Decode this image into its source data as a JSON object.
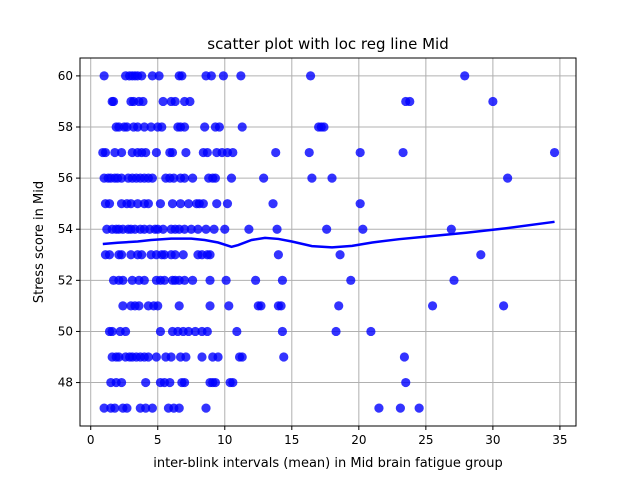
{
  "chart_data": {
    "type": "scatter",
    "title": "scatter plot with loc reg line Mid",
    "xlabel": "inter-blink intervals (mean) in Mid brain fatigue group",
    "ylabel": "Stress score in Mid",
    "xlim": [
      -0.8,
      36.2
    ],
    "ylim": [
      46.3,
      60.7
    ],
    "x_ticks": [
      0,
      5,
      10,
      15,
      20,
      25,
      30,
      35
    ],
    "y_ticks": [
      48,
      50,
      52,
      54,
      56,
      58,
      60
    ],
    "grid": true,
    "point_color": "#0000ff",
    "line_color": "#0000ff",
    "points": [
      [
        1.0,
        60
      ],
      [
        2.6,
        60
      ],
      [
        2.9,
        60
      ],
      [
        3.1,
        60
      ],
      [
        3.3,
        60
      ],
      [
        3.5,
        60
      ],
      [
        3.8,
        60
      ],
      [
        4.6,
        60
      ],
      [
        5.1,
        60
      ],
      [
        6.6,
        60
      ],
      [
        6.8,
        60
      ],
      [
        8.6,
        60
      ],
      [
        9.0,
        60
      ],
      [
        9.9,
        60
      ],
      [
        11.2,
        60
      ],
      [
        16.4,
        60
      ],
      [
        27.9,
        60
      ],
      [
        1.6,
        59
      ],
      [
        1.7,
        59
      ],
      [
        3.0,
        59
      ],
      [
        3.2,
        59
      ],
      [
        3.6,
        59
      ],
      [
        3.9,
        59
      ],
      [
        5.4,
        59
      ],
      [
        6.0,
        59
      ],
      [
        6.3,
        59
      ],
      [
        7.0,
        59
      ],
      [
        7.4,
        59
      ],
      [
        23.5,
        59
      ],
      [
        23.8,
        59
      ],
      [
        30.0,
        59
      ],
      [
        1.9,
        58
      ],
      [
        2.1,
        58
      ],
      [
        2.5,
        58
      ],
      [
        2.7,
        58
      ],
      [
        3.2,
        58
      ],
      [
        3.5,
        58
      ],
      [
        4.0,
        58
      ],
      [
        4.5,
        58
      ],
      [
        5.0,
        58
      ],
      [
        5.3,
        58
      ],
      [
        6.5,
        58
      ],
      [
        6.7,
        58
      ],
      [
        7.0,
        58
      ],
      [
        8.5,
        58
      ],
      [
        9.3,
        58
      ],
      [
        9.6,
        58
      ],
      [
        11.3,
        58
      ],
      [
        17.0,
        58
      ],
      [
        17.2,
        58
      ],
      [
        17.4,
        58
      ],
      [
        0.9,
        57
      ],
      [
        1.1,
        57
      ],
      [
        1.8,
        57
      ],
      [
        2.3,
        57
      ],
      [
        3.1,
        57
      ],
      [
        3.5,
        57
      ],
      [
        3.8,
        57
      ],
      [
        4.1,
        57
      ],
      [
        4.9,
        57
      ],
      [
        5.9,
        57
      ],
      [
        6.1,
        57
      ],
      [
        7.1,
        57
      ],
      [
        8.4,
        57
      ],
      [
        8.7,
        57
      ],
      [
        9.4,
        57
      ],
      [
        9.8,
        57
      ],
      [
        10.2,
        57
      ],
      [
        10.6,
        57
      ],
      [
        13.8,
        57
      ],
      [
        16.3,
        57
      ],
      [
        20.1,
        57
      ],
      [
        23.3,
        57
      ],
      [
        34.6,
        57
      ],
      [
        1.0,
        56
      ],
      [
        1.3,
        56
      ],
      [
        1.5,
        56
      ],
      [
        1.8,
        56
      ],
      [
        2.0,
        56
      ],
      [
        2.3,
        56
      ],
      [
        2.8,
        56
      ],
      [
        3.1,
        56
      ],
      [
        3.4,
        56
      ],
      [
        3.7,
        56
      ],
      [
        4.0,
        56
      ],
      [
        4.3,
        56
      ],
      [
        4.6,
        56
      ],
      [
        5.6,
        56
      ],
      [
        5.9,
        56
      ],
      [
        6.2,
        56
      ],
      [
        6.7,
        56
      ],
      [
        7.0,
        56
      ],
      [
        7.6,
        56
      ],
      [
        8.8,
        56
      ],
      [
        9.1,
        56
      ],
      [
        9.3,
        56
      ],
      [
        10.5,
        56
      ],
      [
        12.9,
        56
      ],
      [
        16.5,
        56
      ],
      [
        18.0,
        56
      ],
      [
        31.1,
        56
      ],
      [
        1.1,
        55
      ],
      [
        1.4,
        55
      ],
      [
        2.3,
        55
      ],
      [
        2.7,
        55
      ],
      [
        3.0,
        55
      ],
      [
        3.5,
        55
      ],
      [
        4.0,
        55
      ],
      [
        4.3,
        55
      ],
      [
        5.2,
        55
      ],
      [
        6.1,
        55
      ],
      [
        6.7,
        55
      ],
      [
        7.3,
        55
      ],
      [
        7.9,
        55
      ],
      [
        8.1,
        55
      ],
      [
        8.4,
        55
      ],
      [
        9.4,
        55
      ],
      [
        10.2,
        55
      ],
      [
        13.6,
        55
      ],
      [
        20.1,
        55
      ],
      [
        1.2,
        54
      ],
      [
        1.6,
        54
      ],
      [
        1.9,
        54
      ],
      [
        2.1,
        54
      ],
      [
        2.4,
        54
      ],
      [
        2.8,
        54
      ],
      [
        3.0,
        54
      ],
      [
        3.3,
        54
      ],
      [
        3.7,
        54
      ],
      [
        4.0,
        54
      ],
      [
        4.4,
        54
      ],
      [
        4.8,
        54
      ],
      [
        5.0,
        54
      ],
      [
        5.4,
        54
      ],
      [
        6.0,
        54
      ],
      [
        6.3,
        54
      ],
      [
        6.6,
        54
      ],
      [
        7.0,
        54
      ],
      [
        7.5,
        54
      ],
      [
        8.0,
        54
      ],
      [
        8.6,
        54
      ],
      [
        9.2,
        54
      ],
      [
        10.0,
        54
      ],
      [
        11.8,
        54
      ],
      [
        13.9,
        54
      ],
      [
        17.6,
        54
      ],
      [
        20.3,
        54
      ],
      [
        26.9,
        54
      ],
      [
        1.1,
        53
      ],
      [
        1.4,
        53
      ],
      [
        2.1,
        53
      ],
      [
        2.3,
        53
      ],
      [
        3.0,
        53
      ],
      [
        3.5,
        53
      ],
      [
        3.8,
        53
      ],
      [
        4.5,
        53
      ],
      [
        4.9,
        53
      ],
      [
        5.3,
        53
      ],
      [
        5.5,
        53
      ],
      [
        6.0,
        53
      ],
      [
        6.3,
        53
      ],
      [
        6.9,
        53
      ],
      [
        8.0,
        53
      ],
      [
        8.3,
        53
      ],
      [
        8.7,
        53
      ],
      [
        8.9,
        53
      ],
      [
        14.0,
        53
      ],
      [
        18.6,
        53
      ],
      [
        29.1,
        53
      ],
      [
        1.7,
        52
      ],
      [
        2.1,
        52
      ],
      [
        2.4,
        52
      ],
      [
        3.1,
        52
      ],
      [
        3.6,
        52
      ],
      [
        4.0,
        52
      ],
      [
        4.9,
        52
      ],
      [
        5.2,
        52
      ],
      [
        5.5,
        52
      ],
      [
        6.1,
        52
      ],
      [
        6.3,
        52
      ],
      [
        6.6,
        52
      ],
      [
        7.0,
        52
      ],
      [
        7.6,
        52
      ],
      [
        8.9,
        52
      ],
      [
        10.1,
        52
      ],
      [
        12.3,
        52
      ],
      [
        14.3,
        52
      ],
      [
        19.4,
        52
      ],
      [
        27.1,
        52
      ],
      [
        2.4,
        51
      ],
      [
        3.0,
        51
      ],
      [
        3.3,
        51
      ],
      [
        3.6,
        51
      ],
      [
        4.3,
        51
      ],
      [
        4.7,
        51
      ],
      [
        5.0,
        51
      ],
      [
        6.6,
        51
      ],
      [
        8.9,
        51
      ],
      [
        10.3,
        51
      ],
      [
        12.5,
        51
      ],
      [
        12.7,
        51
      ],
      [
        14.0,
        51
      ],
      [
        14.2,
        51
      ],
      [
        18.5,
        51
      ],
      [
        25.5,
        51
      ],
      [
        30.8,
        51
      ],
      [
        1.4,
        50
      ],
      [
        1.6,
        50
      ],
      [
        2.2,
        50
      ],
      [
        2.6,
        50
      ],
      [
        5.2,
        50
      ],
      [
        6.1,
        50
      ],
      [
        6.5,
        50
      ],
      [
        6.9,
        50
      ],
      [
        7.3,
        50
      ],
      [
        7.8,
        50
      ],
      [
        8.3,
        50
      ],
      [
        8.7,
        50
      ],
      [
        10.9,
        50
      ],
      [
        14.3,
        50
      ],
      [
        18.3,
        50
      ],
      [
        20.9,
        50
      ],
      [
        1.6,
        49
      ],
      [
        1.9,
        49
      ],
      [
        2.1,
        49
      ],
      [
        2.6,
        49
      ],
      [
        2.9,
        49
      ],
      [
        3.1,
        49
      ],
      [
        3.4,
        49
      ],
      [
        3.7,
        49
      ],
      [
        4.0,
        49
      ],
      [
        4.3,
        49
      ],
      [
        4.9,
        49
      ],
      [
        5.6,
        49
      ],
      [
        6.0,
        49
      ],
      [
        6.7,
        49
      ],
      [
        7.1,
        49
      ],
      [
        8.3,
        49
      ],
      [
        9.1,
        49
      ],
      [
        9.5,
        49
      ],
      [
        11.1,
        49
      ],
      [
        11.3,
        49
      ],
      [
        14.4,
        49
      ],
      [
        23.4,
        49
      ],
      [
        1.5,
        48
      ],
      [
        1.9,
        48
      ],
      [
        2.3,
        48
      ],
      [
        4.1,
        48
      ],
      [
        5.2,
        48
      ],
      [
        5.5,
        48
      ],
      [
        5.9,
        48
      ],
      [
        6.8,
        48
      ],
      [
        7.0,
        48
      ],
      [
        8.9,
        48
      ],
      [
        9.1,
        48
      ],
      [
        9.3,
        48
      ],
      [
        10.4,
        48
      ],
      [
        10.6,
        48
      ],
      [
        23.5,
        48
      ],
      [
        1.0,
        47
      ],
      [
        1.5,
        47
      ],
      [
        1.8,
        47
      ],
      [
        2.4,
        47
      ],
      [
        2.7,
        47
      ],
      [
        3.7,
        47
      ],
      [
        4.1,
        47
      ],
      [
        4.6,
        47
      ],
      [
        5.8,
        47
      ],
      [
        6.2,
        47
      ],
      [
        6.6,
        47
      ],
      [
        8.6,
        47
      ],
      [
        21.5,
        47
      ],
      [
        23.1,
        47
      ],
      [
        24.5,
        47
      ]
    ],
    "loess_line": [
      [
        0.9,
        53.42
      ],
      [
        2.0,
        53.47
      ],
      [
        3.5,
        53.52
      ],
      [
        4.5,
        53.58
      ],
      [
        6.0,
        53.63
      ],
      [
        7.5,
        53.63
      ],
      [
        8.5,
        53.58
      ],
      [
        9.5,
        53.48
      ],
      [
        10.5,
        53.31
      ],
      [
        11.0,
        53.38
      ],
      [
        12.0,
        53.58
      ],
      [
        13.0,
        53.66
      ],
      [
        14.0,
        53.62
      ],
      [
        15.0,
        53.52
      ],
      [
        16.5,
        53.34
      ],
      [
        18.0,
        53.29
      ],
      [
        19.5,
        53.35
      ],
      [
        21.0,
        53.48
      ],
      [
        23.0,
        53.61
      ],
      [
        25.0,
        53.71
      ],
      [
        28.0,
        53.86
      ],
      [
        31.0,
        54.04
      ],
      [
        34.6,
        54.29
      ]
    ]
  }
}
